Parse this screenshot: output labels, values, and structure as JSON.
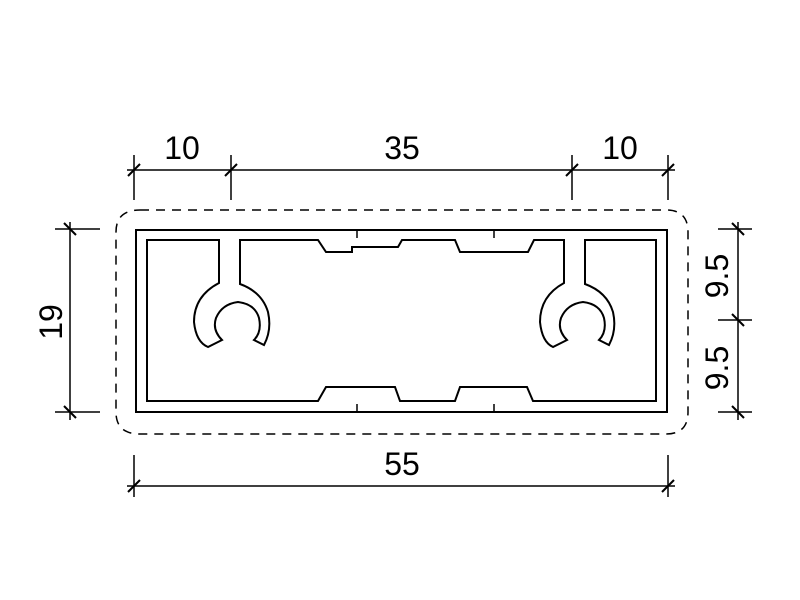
{
  "colors": {
    "line": "#000000",
    "background": "#ffffff"
  },
  "dimensions": {
    "top_left": "10",
    "top_middle": "35",
    "top_right": "10",
    "overall_width": "55",
    "overall_height": "19",
    "right_upper": "9.5",
    "right_lower": "9.5"
  }
}
